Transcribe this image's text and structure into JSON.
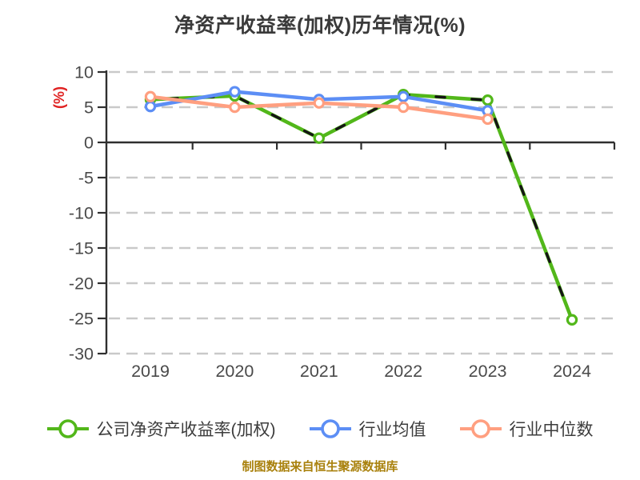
{
  "title": "净资产收益率(加权)历年情况(%)",
  "caption": "制图数据来自恒生聚源数据库",
  "colors": {
    "background": "#ffffff",
    "title_text": "#3a3a3a",
    "axis": "#2f2f2f",
    "tick_label": "#4a4a4a",
    "gridline": "#c9c9c9",
    "ylabel_red": "#e02222",
    "caption_gold": "#a9810d",
    "marker_fill": "#ffffff",
    "green_overlay_dash": "#151515"
  },
  "chart_data": {
    "type": "line",
    "title": "净资产收益率(加权)历年情况(%)",
    "xlabel": "",
    "ylabel": "(%)",
    "categories": [
      "2019",
      "2020",
      "2021",
      "2022",
      "2023",
      "2024"
    ],
    "ylim": [
      -30,
      10
    ],
    "yticks": [
      10,
      5,
      0,
      -5,
      -10,
      -15,
      -20,
      -25,
      -30
    ],
    "grid": "horizontal dashed, zero axis solid with down ticks",
    "legend_position": "bottom",
    "series": [
      {
        "name": "公司净资产收益率(加权)",
        "color": "#52b71a",
        "values": [
          6.1,
          6.6,
          0.6,
          6.8,
          6.0,
          -25.2
        ],
        "marker": "white circle, colored ring",
        "line_overlay": "black-dashed"
      },
      {
        "name": "行业均值",
        "color": "#5c8ef5",
        "values": [
          5.1,
          7.2,
          6.1,
          6.5,
          4.5,
          null
        ],
        "marker": "white circle, colored ring",
        "line_overlay": "none"
      },
      {
        "name": "行业中位数",
        "color": "#ff9f80",
        "values": [
          6.5,
          5.0,
          5.6,
          5.0,
          3.3,
          null
        ],
        "marker": "white circle, colored ring",
        "line_overlay": "none"
      }
    ]
  }
}
